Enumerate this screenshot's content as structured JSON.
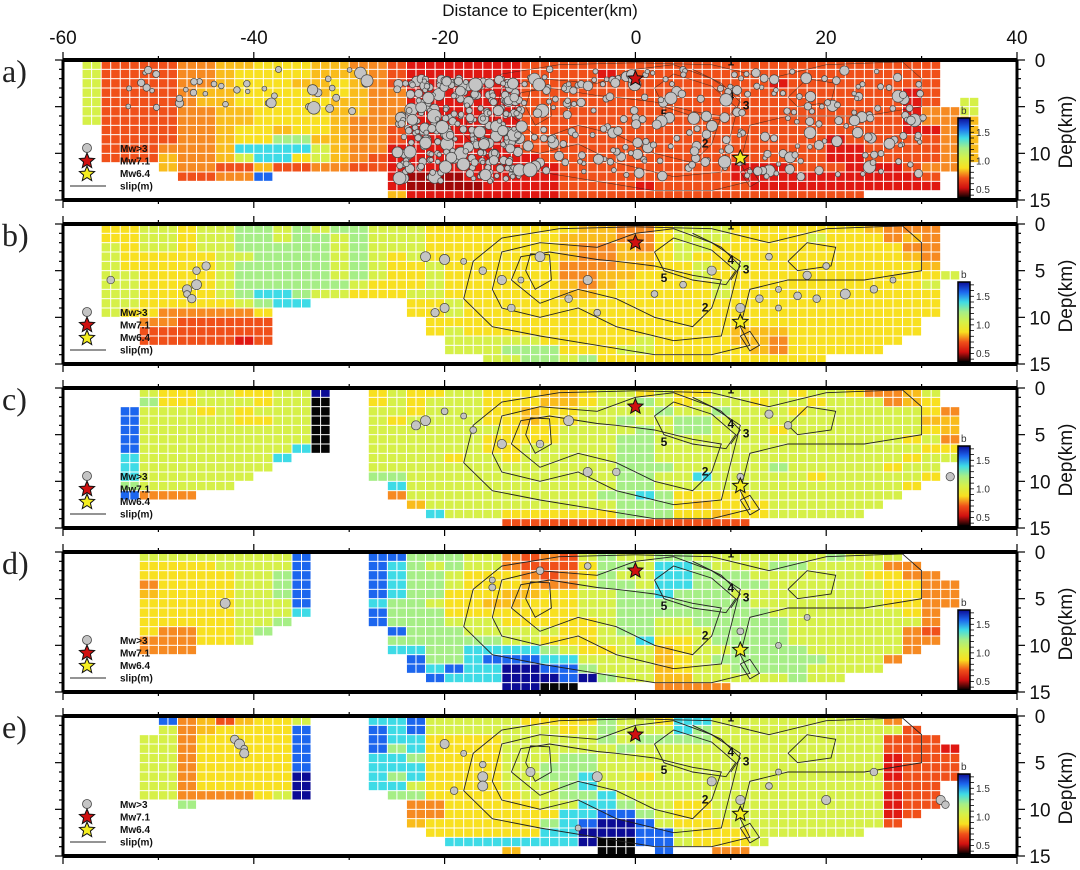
{
  "chart_data": {
    "type": "heatmap",
    "title": "Distance to Epicenter(km)",
    "xlabel": "Distance to Epicenter(km)",
    "ylabel": "Dep(km)",
    "xlim": [
      -60,
      40
    ],
    "ylim": [
      0,
      15
    ],
    "x_ticks": [
      "-60",
      "-40",
      "-20",
      "0",
      "20",
      "40"
    ],
    "x_tick_values": [
      -60,
      -40,
      -20,
      0,
      20,
      40
    ],
    "y_ticks": [
      "0",
      "5",
      "10",
      "15"
    ],
    "y_tick_values": [
      0,
      5,
      10,
      15
    ],
    "grid_x_start_km": -58,
    "grid_col_km": 2,
    "grid_row_km": 1,
    "colorbar": {
      "label": "b",
      "ticks": [
        "0.5",
        "1.0",
        "1.5"
      ],
      "tick_values": [
        0.5,
        1.0,
        1.5
      ],
      "range": [
        0.35,
        1.75
      ]
    },
    "palette": {
      "0": "#a00808",
      "1": "#e01812",
      "2": "#f0501a",
      "3": "#f68a22",
      "4": "#f9bc1c",
      "5": "#f8e020",
      "6": "#d6f048",
      "7": "#a6ee86",
      "8": "#3edbe6",
      "9": "#1c66ee",
      "B": "#0c0c96",
      "K": "#050505"
    },
    "b_value_codes": {
      "0": 0.45,
      "1": 0.55,
      "2": 0.65,
      "3": 0.75,
      "4": 0.85,
      "5": 0.95,
      "6": 1.05,
      "7": 1.15,
      "8": 1.3,
      "9": 1.45,
      "B": 1.6,
      "K": 1.75
    },
    "legend": {
      "items": [
        "Mw>3",
        "Mw7.1",
        "Mw6.4",
        "slip(m)"
      ],
      "placement": "bottom-left"
    },
    "contour_labels": [
      "5",
      "4",
      "3",
      "2",
      "1"
    ],
    "mainshocks": [
      {
        "name": "Mw7.1",
        "x": 0,
        "depth": 2,
        "color": "#d01010"
      },
      {
        "name": "Mw6.4",
        "x": 11,
        "depth": 10.5,
        "color": "#f4ee20"
      }
    ],
    "panels": [
      {
        "label": "a)",
        "rows": [
          "62222 33445 55443 32111 11122 22222 22222 22222 22222 ..",
          "62222 33455 55444 32111 11122 22122 22222 22222 22222 ..",
          "62222 33455 54454 32111 11122 22222 22222 21222 22222 ..",
          "62222 34455 55454 33111 11122 22222 22222 22222 22212 ..",
          "62222 34455 55544 33111 11122 22222 22222 22222 22212 .6",
          "62222 33445 55544 33111 11122 22222 22222 22222 22213 36",
          "62222 33445 55543 33111 11122 22222 22222 22222 22213 34",
          ".2222 33455 45543 32111 11122 22222 22222 22222 22211 34",
          ".2222 33455 77443 32111 11122 22222 22222 22221 22222 34",
          ".2223 33488 88643 31111 11122 22222 22222 22221 12222 34",
          ".2224 33468 85643 21111 11112 22222 22222 22221 12222 34",
          "....4 33224 22332 21111 11111 22222 22221 11222 11123 3.",
          "..... 22339 ..... .1000 11111 22222 22221 11111 11112 ..",
          "..... ..... ..... .1000 01111 22221 22222 11111 11111 ..",
          "..... ..... ..... .4111 11111 22222 22222 22222 2.... .."
        ],
        "quakes": [],
        "quake_clusters": [
          {
            "x": [
              -25,
              -12
            ],
            "depth": [
              2,
              13
            ],
            "count": 300
          },
          {
            "x": [
              -12,
              31
            ],
            "depth": [
              1,
              12.5
            ],
            "count": 260
          },
          {
            "x": [
              -54,
              -28
            ],
            "depth": [
              1,
              5.5
            ],
            "count": 40
          }
        ]
      },
      {
        "label": "b)",
        "rows": [
          ".5566 56677 67677 66655 55555 54433 56665 55555 54333 ..",
          ".5566 56677 67767 66655 55555 44433 56665 55565 55343 ..",
          ".6566 56677 77767 66655 55555 43343 56655 55555 55533 ..",
          ".6555 55667 77767 65655 55555 43344 56555 55555 55543 ..",
          ".6555 55677 77767 65565 55555 33344 55656 55555 55554 ..",
          ".6655 55677 77767 65565 55555 33445 55655 55555 55555 6.",
          ".6655 55677 77776 55565 55555 43455 55565 55555 55556 ..",
          ".6655 55678 87665 55665 55555 44555 55565 55555 55555 ..",
          ".6655 55567 88... ..556 55555 55555 55555 55555 55555 ..",
          ".6553 33335 ..... ..556 55555 55555 55555 55555 55555 ..",
          "...33 22222 ..... ...55 55555 55555 55555 55555 5555. ..",
          "...22 22222 ..... ...56 55555 55555 55554 44555 5555. ..",
          "...22 22212 ..... ....6 66665 55556 55554 43555 555.. ..",
          "..... ..... ..... ....6 66777 55566 55555 43555 55... ..",
          "..... ..... ..... ..... .6677 67555 55555 5555. ..... .."
        ],
        "quakes": [
          [
            -55,
            6
          ],
          [
            -46,
            5
          ],
          [
            -45,
            4.5
          ],
          [
            -47,
            7
          ],
          [
            -47,
            7.5
          ],
          [
            -46.5,
            8
          ],
          [
            -46,
            6.5
          ],
          [
            -22,
            3.5
          ],
          [
            -20,
            3.8
          ],
          [
            -18,
            4
          ],
          [
            -16,
            5
          ],
          [
            -12,
            6
          ],
          [
            -10,
            3.5
          ],
          [
            -5,
            6
          ],
          [
            -14,
            6
          ],
          [
            -13,
            9
          ],
          [
            -7,
            8
          ],
          [
            -4,
            9.5
          ],
          [
            2,
            7.5
          ],
          [
            5,
            6.5
          ],
          [
            8,
            5
          ],
          [
            11,
            9
          ],
          [
            13,
            8
          ],
          [
            15,
            7
          ],
          [
            17,
            7.7
          ],
          [
            19,
            8
          ],
          [
            22,
            7.5
          ],
          [
            25,
            7
          ],
          [
            18,
            5.5
          ],
          [
            20,
            4.5
          ],
          [
            14,
            3.5
          ],
          [
            27,
            6
          ],
          [
            15,
            9
          ],
          [
            -20,
            9
          ],
          [
            -21,
            9.5
          ]
        ]
      },
      {
        "label": "c)",
        "rows": [
          "...65 56655 66B.. 56556 65554 45665 65566 66566 53346 ..",
          "...75 56665 66K.. 56566 65554 45667 65666 56656 66345 ..",
          "..966 65656 66K.. 66566 65545 56666 76676 66566 66665 3.",
          "..966 66655 66K.. 65666 65545 56676 67766 66666 66664 4.",
          "..966 66666 66K.. 66666 66555 66667 67766 65666 66665 4.",
          "..966 66666 66K.. 66666 65555 66677 66666 66666 66656 3.",
          "..966 66666 68K.. 66666 65566 66677 66666 66666 66665 5.",
          "..866 66666 8.... 66665 66566 66677 66666 66666 66656 6.",
          "..866 66666 ..... 66666 66666 66677 76666 67666 66566 ..",
          "..866 6666. ..... 77666 66666 66677 66866 66656 66665 ..",
          "..766 666.. ..... .8666 66666 66677 66666 66666 6665. ..",
          "..933 3.... ..... .3666 66666 66778 75555 66666 666.. ..",
          "..... ..... ..... ..466 66666 66677 75455 56666 66... ..",
          "..... ..... ..... ...86 66555 55577 75545 56666 6.... ..",
          "..... ..... ..... ..... ..222 22222 22222 ..... ..... .."
        ],
        "quakes": [
          [
            -22,
            3.5
          ],
          [
            -20,
            2.5
          ],
          [
            -18,
            3
          ],
          [
            -17,
            4.5
          ],
          [
            -14,
            6
          ],
          [
            -10,
            6
          ],
          [
            -7,
            3.5
          ],
          [
            -2,
            9
          ],
          [
            -5,
            9
          ],
          [
            11,
            9.5
          ],
          [
            14,
            2.8
          ],
          [
            16,
            4
          ],
          [
            33,
            9.5
          ],
          [
            -23,
            4
          ]
        ]
      },
      {
        "label": "d)",
        "rows": [
          "...66 66666 69... 99777 66323 26766 77666 66667 666.. ..",
          "...55 55666 69... 98767 66322 25776 88766 67766 6633. ..",
          "...55 55566 79... 98776 55532 35766 88777 66666 65533 ..",
          "...35 55566 79... 98776 55543 36776 88777 76666 66553 3.",
          "...45 55566 79... 98775 55445 56677 87776 66666 66553 3.",
          "...55 55566 69... 87765 54455 56677 77777 66666 66553 3.",
          "...55 55566 68... 97775 55555 56677 77777 76666 66653 ..",
          "...55 55566 7.... 97776 66555 55677 66777 77666 66663 ..",
          "...53 35567 ..... .9777 66666 55677 66677 77666 66632 ..",
          "...33 3556. ..... .7777 77665 55668 55677 77666 66633 ..",
          "...33 3.... ..... .8877 88887 65566 45667 77766 6663. ..",
          "..... ..... ..... ..977 89998 86666 45677 77776 663.. ..",
          "..... ..... ..... ..989 88BB9 97666 45667 77766 66... ..",
          "..... ..... ..... ...98 88BBB 9B766 44666 66766 ..... ..",
          "..... ..... ..... ..... ..BBK K.... 3333. ..... ..... .."
        ],
        "quakes": [
          [
            -43,
            5.5
          ],
          [
            -15,
            3
          ],
          [
            -15,
            3.8
          ],
          [
            -10,
            2
          ],
          [
            -5,
            1.5
          ],
          [
            18,
            7
          ],
          [
            11,
            8.5
          ],
          [
            15,
            10
          ]
        ]
      },
      {
        "label": "e)",
        "rows": [
          "....9 34245 56... 88966 66655 55766 58866 66666 663.. ..",
          "....6 34555 59... 98966 66666 56766 68766 66666 6662. ..",
          "...66 35555 59... 98855 55666 66767 77766 66666 66222 ..",
          "...66 35555 59... 97855 55666 66676 66666 66666 66222 1.",
          "...66 35555 59... 88755 55666 77666 66666 66666 66122 2.",
          "...66 35555 59... 88855 55667 77666 66666 66666 66122 2.",
          "...66 35555 5B... 87855 55667 78665 66666 66666 66122 2.",
          "...66 35555 5B... 88655 55666 78666 66666 66666 66222 ..",
          "...66 33335 6B... .7755 55566 77866 66666 66666 66122 ..",
          "..... 7.... ..... ..335 55556 68876 65566 66666 66122 ..",
          "..... ..... ..... ..335 55555 88997 65566 66666 6612. ..",
          "..... ..... ..... ..455 55557 89BB9 65556 66666 662.. ..",
          "..... ..... ..... ...55 55558 8BBB9 96555 66666 6.... ..",
          "..... ..... ..... ....8 88888 8BKK9 96555 6.... ..... ..",
          "..... ..... ..... ..... ..4.. ..KK. 9..33 ..... ..... .."
        ],
        "quakes": [
          [
            -42,
            2.5
          ],
          [
            -41.5,
            3
          ],
          [
            -41,
            3.5
          ],
          [
            -41,
            4
          ],
          [
            -18,
            4
          ],
          [
            -16,
            5.2
          ],
          [
            -16,
            6.5
          ],
          [
            -16,
            7.5
          ],
          [
            -11,
            6
          ],
          [
            -4,
            6.5
          ],
          [
            -19,
            8
          ],
          [
            -6,
            12
          ],
          [
            11,
            9
          ],
          [
            15,
            6
          ],
          [
            8,
            7
          ],
          [
            14,
            7.5
          ],
          [
            20,
            9
          ],
          [
            25,
            6
          ],
          [
            32,
            9
          ],
          [
            32.5,
            9.5
          ],
          [
            -20,
            3
          ]
        ]
      }
    ]
  }
}
